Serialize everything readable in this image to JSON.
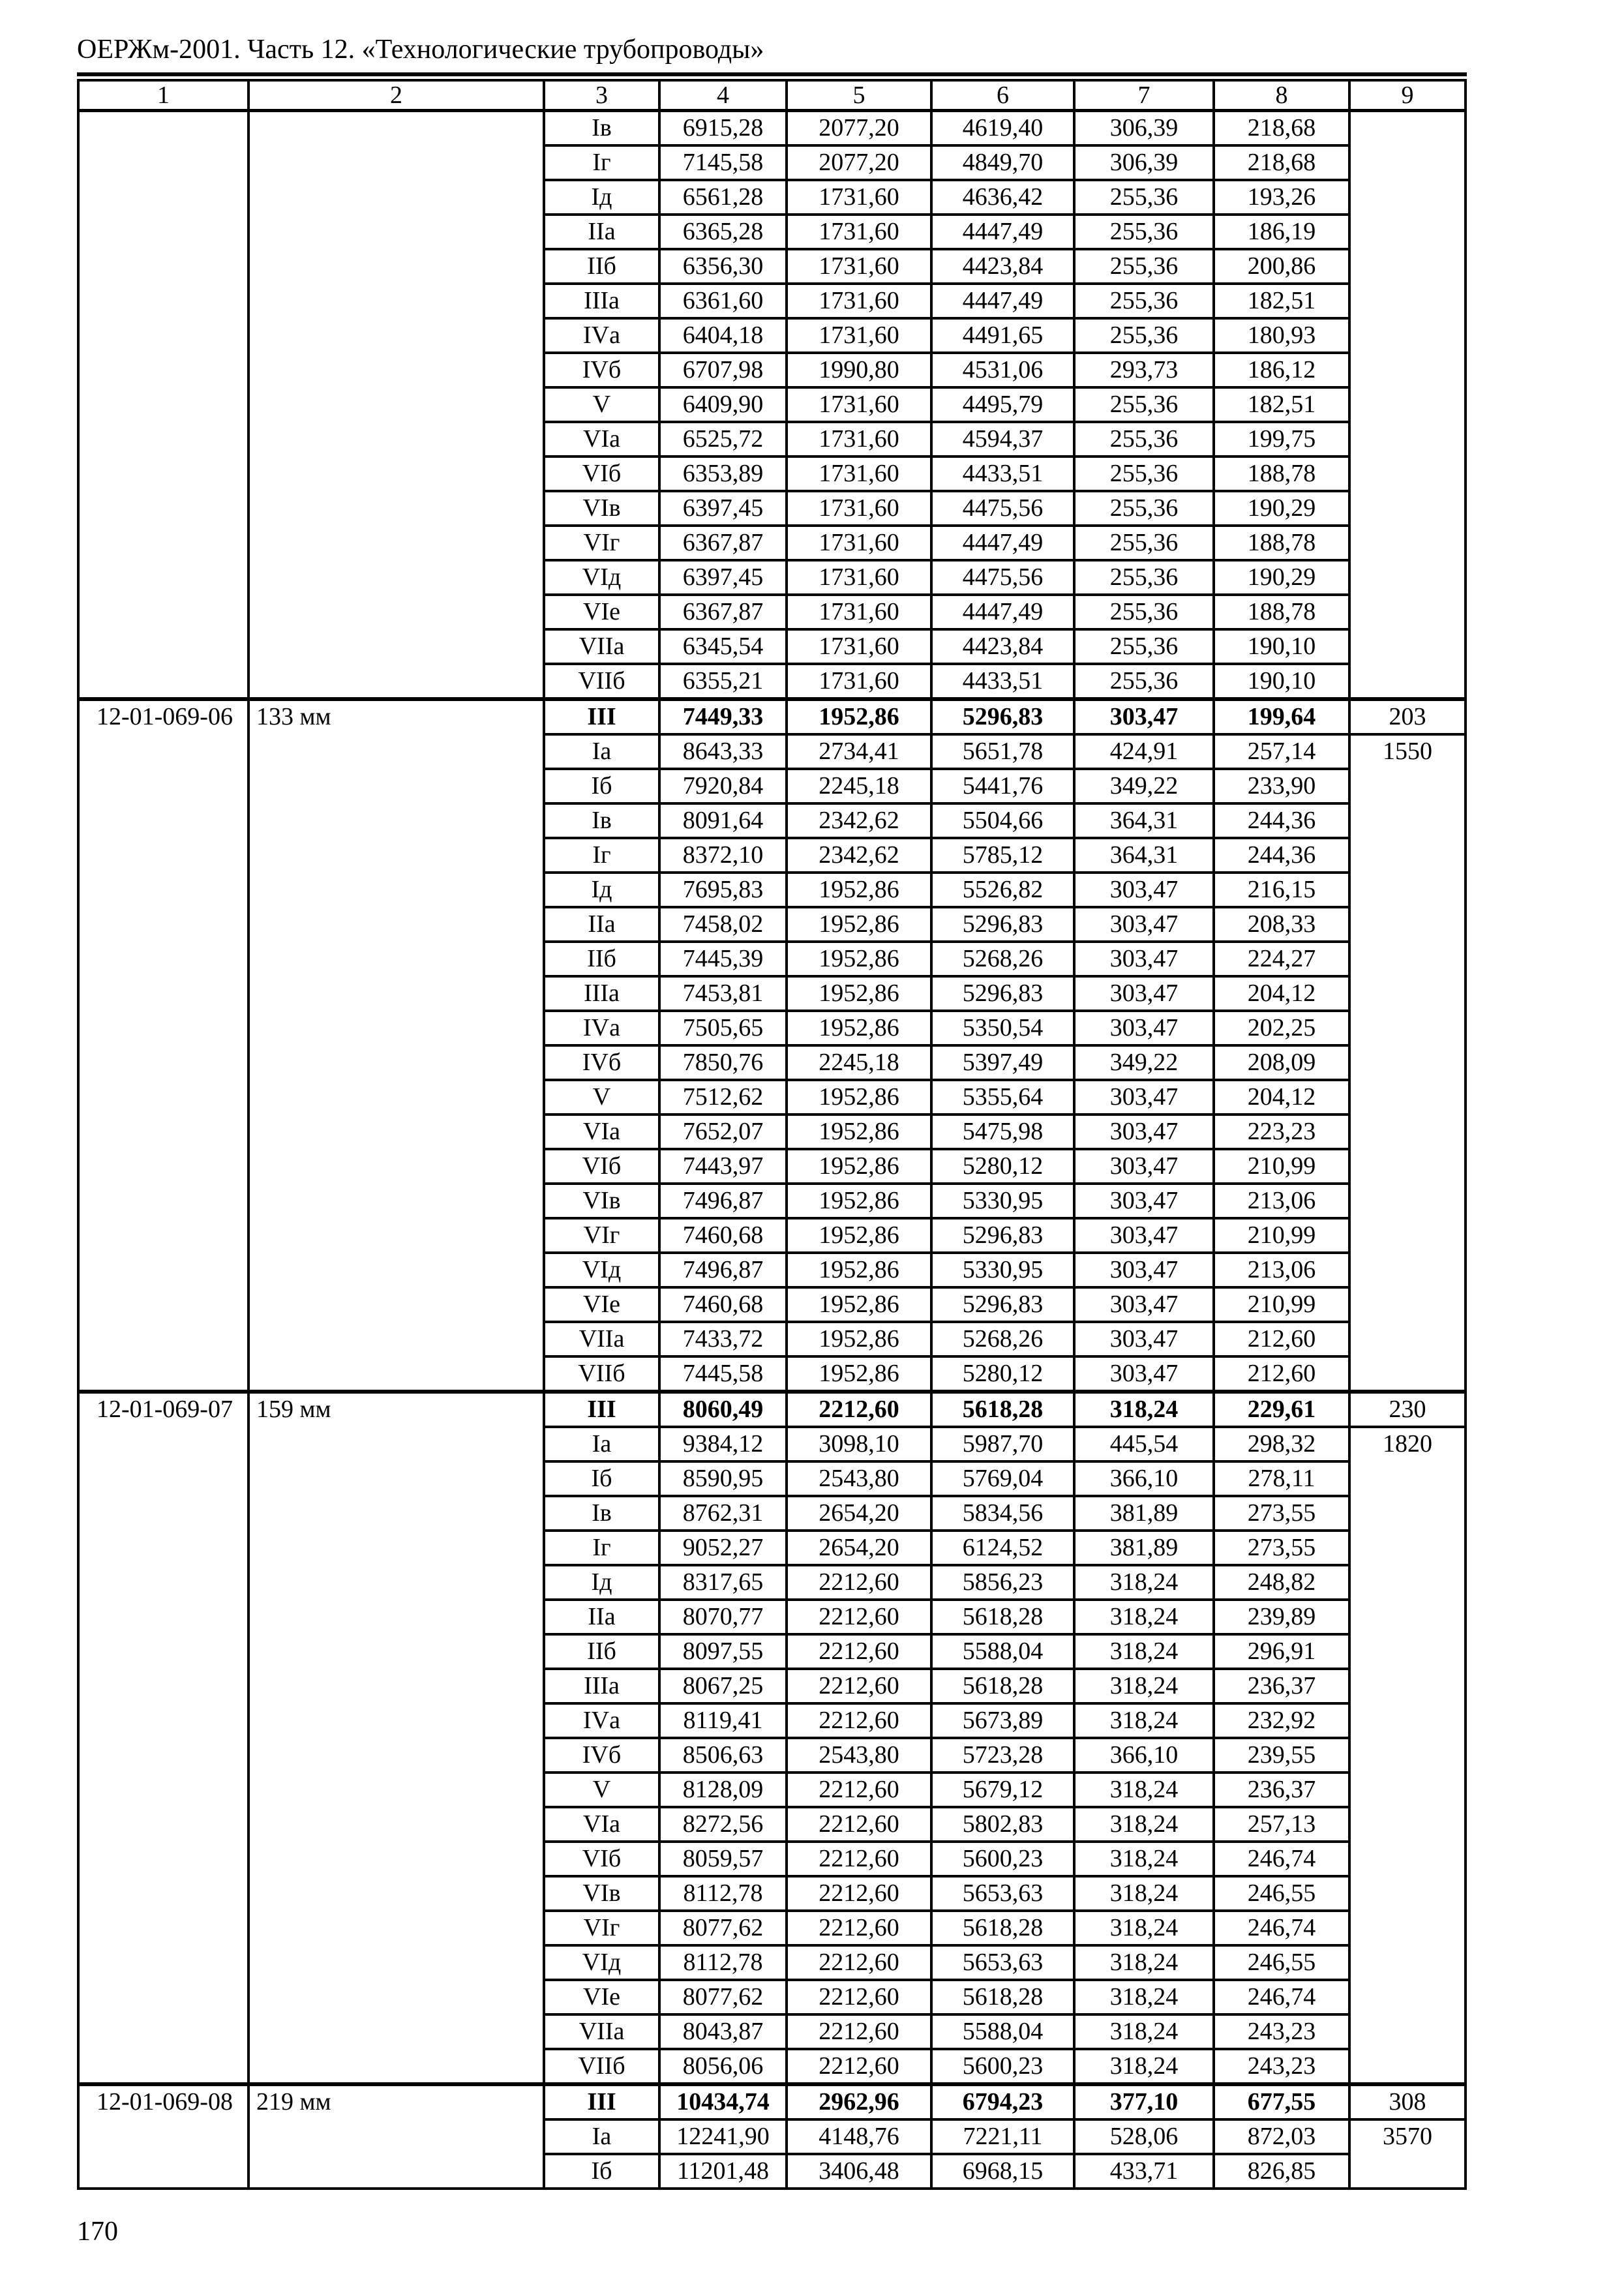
{
  "page": {
    "title": "ОЕРЖм-2001. Часть 12. «Технологические трубопроводы»",
    "page_number": "170"
  },
  "colors": {
    "ink": "#000000",
    "paper": "#ffffff"
  },
  "table": {
    "column_headers": [
      "1",
      "2",
      "3",
      "4",
      "5",
      "6",
      "7",
      "8",
      "9"
    ],
    "sections": [
      {
        "code": "",
        "size": "",
        "col9_first": "",
        "col9_rest": "",
        "rows": [
          {
            "label": "Iв",
            "v": [
              "6915,28",
              "2077,20",
              "4619,40",
              "306,39",
              "218,68"
            ],
            "bold": false
          },
          {
            "label": "Iг",
            "v": [
              "7145,58",
              "2077,20",
              "4849,70",
              "306,39",
              "218,68"
            ],
            "bold": false
          },
          {
            "label": "Iд",
            "v": [
              "6561,28",
              "1731,60",
              "4636,42",
              "255,36",
              "193,26"
            ],
            "bold": false
          },
          {
            "label": "IIа",
            "v": [
              "6365,28",
              "1731,60",
              "4447,49",
              "255,36",
              "186,19"
            ],
            "bold": false
          },
          {
            "label": "IIб",
            "v": [
              "6356,30",
              "1731,60",
              "4423,84",
              "255,36",
              "200,86"
            ],
            "bold": false
          },
          {
            "label": "IIIа",
            "v": [
              "6361,60",
              "1731,60",
              "4447,49",
              "255,36",
              "182,51"
            ],
            "bold": false
          },
          {
            "label": "IVа",
            "v": [
              "6404,18",
              "1731,60",
              "4491,65",
              "255,36",
              "180,93"
            ],
            "bold": false
          },
          {
            "label": "IVб",
            "v": [
              "6707,98",
              "1990,80",
              "4531,06",
              "293,73",
              "186,12"
            ],
            "bold": false
          },
          {
            "label": "V",
            "v": [
              "6409,90",
              "1731,60",
              "4495,79",
              "255,36",
              "182,51"
            ],
            "bold": false
          },
          {
            "label": "VIа",
            "v": [
              "6525,72",
              "1731,60",
              "4594,37",
              "255,36",
              "199,75"
            ],
            "bold": false
          },
          {
            "label": "VIб",
            "v": [
              "6353,89",
              "1731,60",
              "4433,51",
              "255,36",
              "188,78"
            ],
            "bold": false
          },
          {
            "label": "VIв",
            "v": [
              "6397,45",
              "1731,60",
              "4475,56",
              "255,36",
              "190,29"
            ],
            "bold": false
          },
          {
            "label": "VIг",
            "v": [
              "6367,87",
              "1731,60",
              "4447,49",
              "255,36",
              "188,78"
            ],
            "bold": false
          },
          {
            "label": "VIд",
            "v": [
              "6397,45",
              "1731,60",
              "4475,56",
              "255,36",
              "190,29"
            ],
            "bold": false
          },
          {
            "label": "VIе",
            "v": [
              "6367,87",
              "1731,60",
              "4447,49",
              "255,36",
              "188,78"
            ],
            "bold": false
          },
          {
            "label": "VIIа",
            "v": [
              "6345,54",
              "1731,60",
              "4423,84",
              "255,36",
              "190,10"
            ],
            "bold": false
          },
          {
            "label": "VIIб",
            "v": [
              "6355,21",
              "1731,60",
              "4433,51",
              "255,36",
              "190,10"
            ],
            "bold": false
          }
        ]
      },
      {
        "code": "12-01-069-06",
        "size": "133 мм",
        "col9_first": "203",
        "col9_rest": "1550",
        "rows": [
          {
            "label": "III",
            "v": [
              "7449,33",
              "1952,86",
              "5296,83",
              "303,47",
              "199,64"
            ],
            "bold": true
          },
          {
            "label": "Iа",
            "v": [
              "8643,33",
              "2734,41",
              "5651,78",
              "424,91",
              "257,14"
            ],
            "bold": false
          },
          {
            "label": "Iб",
            "v": [
              "7920,84",
              "2245,18",
              "5441,76",
              "349,22",
              "233,90"
            ],
            "bold": false
          },
          {
            "label": "Iв",
            "v": [
              "8091,64",
              "2342,62",
              "5504,66",
              "364,31",
              "244,36"
            ],
            "bold": false
          },
          {
            "label": "Iг",
            "v": [
              "8372,10",
              "2342,62",
              "5785,12",
              "364,31",
              "244,36"
            ],
            "bold": false
          },
          {
            "label": "Iд",
            "v": [
              "7695,83",
              "1952,86",
              "5526,82",
              "303,47",
              "216,15"
            ],
            "bold": false
          },
          {
            "label": "IIа",
            "v": [
              "7458,02",
              "1952,86",
              "5296,83",
              "303,47",
              "208,33"
            ],
            "bold": false
          },
          {
            "label": "IIб",
            "v": [
              "7445,39",
              "1952,86",
              "5268,26",
              "303,47",
              "224,27"
            ],
            "bold": false
          },
          {
            "label": "IIIа",
            "v": [
              "7453,81",
              "1952,86",
              "5296,83",
              "303,47",
              "204,12"
            ],
            "bold": false
          },
          {
            "label": "IVа",
            "v": [
              "7505,65",
              "1952,86",
              "5350,54",
              "303,47",
              "202,25"
            ],
            "bold": false
          },
          {
            "label": "IVб",
            "v": [
              "7850,76",
              "2245,18",
              "5397,49",
              "349,22",
              "208,09"
            ],
            "bold": false
          },
          {
            "label": "V",
            "v": [
              "7512,62",
              "1952,86",
              "5355,64",
              "303,47",
              "204,12"
            ],
            "bold": false
          },
          {
            "label": "VIа",
            "v": [
              "7652,07",
              "1952,86",
              "5475,98",
              "303,47",
              "223,23"
            ],
            "bold": false
          },
          {
            "label": "VIб",
            "v": [
              "7443,97",
              "1952,86",
              "5280,12",
              "303,47",
              "210,99"
            ],
            "bold": false
          },
          {
            "label": "VIв",
            "v": [
              "7496,87",
              "1952,86",
              "5330,95",
              "303,47",
              "213,06"
            ],
            "bold": false
          },
          {
            "label": "VIг",
            "v": [
              "7460,68",
              "1952,86",
              "5296,83",
              "303,47",
              "210,99"
            ],
            "bold": false
          },
          {
            "label": "VIд",
            "v": [
              "7496,87",
              "1952,86",
              "5330,95",
              "303,47",
              "213,06"
            ],
            "bold": false
          },
          {
            "label": "VIе",
            "v": [
              "7460,68",
              "1952,86",
              "5296,83",
              "303,47",
              "210,99"
            ],
            "bold": false
          },
          {
            "label": "VIIа",
            "v": [
              "7433,72",
              "1952,86",
              "5268,26",
              "303,47",
              "212,60"
            ],
            "bold": false
          },
          {
            "label": "VIIб",
            "v": [
              "7445,58",
              "1952,86",
              "5280,12",
              "303,47",
              "212,60"
            ],
            "bold": false
          }
        ]
      },
      {
        "code": "12-01-069-07",
        "size": "159 мм",
        "col9_first": "230",
        "col9_rest": "1820",
        "rows": [
          {
            "label": "III",
            "v": [
              "8060,49",
              "2212,60",
              "5618,28",
              "318,24",
              "229,61"
            ],
            "bold": true
          },
          {
            "label": "Iа",
            "v": [
              "9384,12",
              "3098,10",
              "5987,70",
              "445,54",
              "298,32"
            ],
            "bold": false
          },
          {
            "label": "Iб",
            "v": [
              "8590,95",
              "2543,80",
              "5769,04",
              "366,10",
              "278,11"
            ],
            "bold": false
          },
          {
            "label": "Iв",
            "v": [
              "8762,31",
              "2654,20",
              "5834,56",
              "381,89",
              "273,55"
            ],
            "bold": false
          },
          {
            "label": "Iг",
            "v": [
              "9052,27",
              "2654,20",
              "6124,52",
              "381,89",
              "273,55"
            ],
            "bold": false
          },
          {
            "label": "Iд",
            "v": [
              "8317,65",
              "2212,60",
              "5856,23",
              "318,24",
              "248,82"
            ],
            "bold": false
          },
          {
            "label": "IIа",
            "v": [
              "8070,77",
              "2212,60",
              "5618,28",
              "318,24",
              "239,89"
            ],
            "bold": false
          },
          {
            "label": "IIб",
            "v": [
              "8097,55",
              "2212,60",
              "5588,04",
              "318,24",
              "296,91"
            ],
            "bold": false
          },
          {
            "label": "IIIа",
            "v": [
              "8067,25",
              "2212,60",
              "5618,28",
              "318,24",
              "236,37"
            ],
            "bold": false
          },
          {
            "label": "IVа",
            "v": [
              "8119,41",
              "2212,60",
              "5673,89",
              "318,24",
              "232,92"
            ],
            "bold": false
          },
          {
            "label": "IVб",
            "v": [
              "8506,63",
              "2543,80",
              "5723,28",
              "366,10",
              "239,55"
            ],
            "bold": false
          },
          {
            "label": "V",
            "v": [
              "8128,09",
              "2212,60",
              "5679,12",
              "318,24",
              "236,37"
            ],
            "bold": false
          },
          {
            "label": "VIа",
            "v": [
              "8272,56",
              "2212,60",
              "5802,83",
              "318,24",
              "257,13"
            ],
            "bold": false
          },
          {
            "label": "VIб",
            "v": [
              "8059,57",
              "2212,60",
              "5600,23",
              "318,24",
              "246,74"
            ],
            "bold": false
          },
          {
            "label": "VIв",
            "v": [
              "8112,78",
              "2212,60",
              "5653,63",
              "318,24",
              "246,55"
            ],
            "bold": false
          },
          {
            "label": "VIг",
            "v": [
              "8077,62",
              "2212,60",
              "5618,28",
              "318,24",
              "246,74"
            ],
            "bold": false
          },
          {
            "label": "VIд",
            "v": [
              "8112,78",
              "2212,60",
              "5653,63",
              "318,24",
              "246,55"
            ],
            "bold": false
          },
          {
            "label": "VIе",
            "v": [
              "8077,62",
              "2212,60",
              "5618,28",
              "318,24",
              "246,74"
            ],
            "bold": false
          },
          {
            "label": "VIIа",
            "v": [
              "8043,87",
              "2212,60",
              "5588,04",
              "318,24",
              "243,23"
            ],
            "bold": false
          },
          {
            "label": "VIIб",
            "v": [
              "8056,06",
              "2212,60",
              "5600,23",
              "318,24",
              "243,23"
            ],
            "bold": false
          }
        ]
      },
      {
        "code": "12-01-069-08",
        "size": "219 мм",
        "col9_first": "308",
        "col9_rest": "3570",
        "rows": [
          {
            "label": "III",
            "v": [
              "10434,74",
              "2962,96",
              "6794,23",
              "377,10",
              "677,55"
            ],
            "bold": true
          },
          {
            "label": "Iа",
            "v": [
              "12241,90",
              "4148,76",
              "7221,11",
              "528,06",
              "872,03"
            ],
            "bold": false
          },
          {
            "label": "Iб",
            "v": [
              "11201,48",
              "3406,48",
              "6968,15",
              "433,71",
              "826,85"
            ],
            "bold": false
          }
        ]
      }
    ]
  }
}
